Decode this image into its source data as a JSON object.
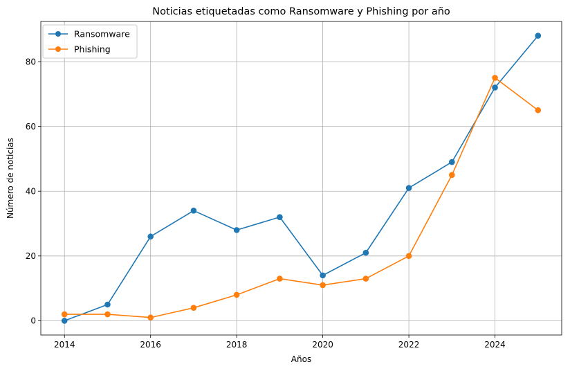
{
  "chart_data": {
    "type": "line",
    "title": "Noticias etiquetadas como Ransomware y Phishing por año",
    "xlabel": "Años",
    "ylabel": "Número de noticias",
    "x": [
      2014,
      2015,
      2016,
      2017,
      2018,
      2019,
      2020,
      2021,
      2022,
      2023,
      2024,
      2025
    ],
    "xlim": [
      2013.45,
      2025.55
    ],
    "ylim": [
      -4.4,
      92.4
    ],
    "xticks": [
      "2014",
      "2016",
      "2018",
      "2020",
      "2022",
      "2024"
    ],
    "yticks": [
      "0",
      "20",
      "40",
      "60",
      "80"
    ],
    "grid": true,
    "legend_position": "top-left",
    "series": [
      {
        "name": "Ransomware",
        "color": "#1f77b4",
        "values": [
          0,
          5,
          26,
          34,
          28,
          32,
          14,
          21,
          41,
          49,
          72,
          88
        ]
      },
      {
        "name": "Phishing",
        "color": "#ff7f0e",
        "values": [
          2,
          2,
          1,
          4,
          8,
          13,
          11,
          13,
          20,
          45,
          75,
          65
        ]
      }
    ]
  }
}
